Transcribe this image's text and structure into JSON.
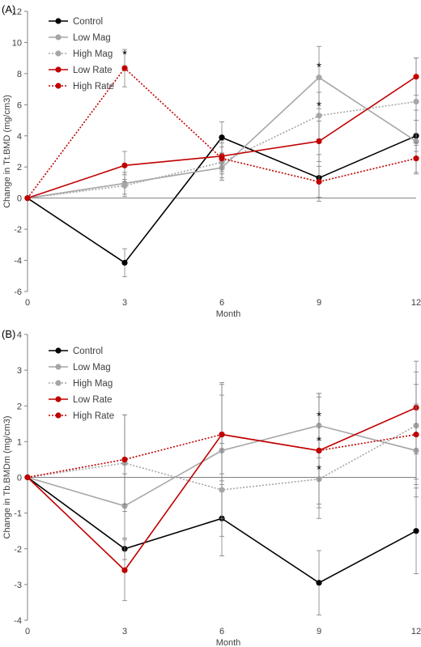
{
  "chart_data": [
    {
      "panel_label": "(A)",
      "type": "line",
      "x": [
        0,
        3,
        6,
        9,
        12
      ],
      "xlabel": "Month",
      "ylabel": "Change in Tt.BMD (mg/cm3)",
      "ylim": [
        -6,
        12
      ],
      "yticks": [
        -6,
        -4,
        -2,
        0,
        2,
        4,
        6,
        8,
        10,
        12
      ],
      "xticks": [
        0,
        3,
        6,
        9,
        12
      ],
      "legend_position": "top-left",
      "series": [
        {
          "name": "Control",
          "color": "#000000",
          "style": "solid",
          "values": [
            0,
            -4.15,
            3.9,
            1.3,
            4.0
          ],
          "errors": [
            0,
            0.9,
            1.0,
            1.5,
            1.0
          ]
        },
        {
          "name": "Low Mag",
          "color": "#a6a6a6",
          "style": "solid",
          "values": [
            0,
            0.95,
            1.95,
            7.75,
            3.65
          ],
          "errors": [
            0,
            0.7,
            0.8,
            2.0,
            2.0
          ]
        },
        {
          "name": "High Mag",
          "color": "#a6a6a6",
          "style": "dotted",
          "values": [
            0,
            0.8,
            2.3,
            5.3,
            6.2
          ],
          "errors": [
            0,
            0.7,
            1.0,
            1.5,
            2.8
          ]
        },
        {
          "name": "Low Rate",
          "color": "#c00000",
          "style": "solid",
          "values": [
            0,
            2.1,
            2.7,
            3.65,
            7.8
          ],
          "errors": [
            0,
            0.9,
            1.0,
            1.3,
            1.2
          ]
        },
        {
          "name": "High Rate",
          "color": "#c00000",
          "style": "dotted",
          "values": [
            0,
            8.35,
            2.55,
            1.05,
            2.55
          ],
          "errors": [
            0,
            1.2,
            1.0,
            1.0,
            1.0
          ]
        }
      ],
      "annotations": [
        {
          "text": "*",
          "x": 3,
          "y": 9.3
        },
        {
          "text": "*",
          "x": 9,
          "y": 8.5
        },
        {
          "text": "*",
          "x": 9,
          "y": 6.0
        }
      ]
    },
    {
      "panel_label": "(B)",
      "type": "line",
      "x": [
        0,
        3,
        6,
        9,
        12
      ],
      "xlabel": "Month",
      "ylabel": "Change in Tb.BMDm (mg/cm3)",
      "ylim": [
        -4,
        4
      ],
      "yticks": [
        -4,
        -3,
        -2,
        -1,
        0,
        1,
        2,
        3,
        4
      ],
      "xticks": [
        0,
        3,
        6,
        9,
        12
      ],
      "legend_position": "top-left",
      "series": [
        {
          "name": "Control",
          "color": "#000000",
          "style": "solid",
          "values": [
            0,
            -2.0,
            -1.15,
            -2.95,
            -1.5
          ],
          "errors": [
            0,
            0.3,
            1.05,
            0.9,
            1.2
          ]
        },
        {
          "name": "Low Mag",
          "color": "#a6a6a6",
          "style": "solid",
          "values": [
            0,
            -0.8,
            0.75,
            1.45,
            0.75
          ],
          "errors": [
            0,
            0.9,
            1.9,
            0.9,
            1.3
          ]
        },
        {
          "name": "High Mag",
          "color": "#a6a6a6",
          "style": "dotted",
          "values": [
            0,
            0.4,
            -0.35,
            -0.05,
            1.45
          ],
          "errors": [
            0,
            1.35,
            1.3,
            1.1,
            1.5
          ]
        },
        {
          "name": "Low Rate",
          "color": "#c00000",
          "style": "solid",
          "values": [
            0,
            -2.6,
            1.2,
            0.75,
            1.95
          ],
          "errors": [
            0,
            0.85,
            1.4,
            1.6,
            1.3
          ]
        },
        {
          "name": "High Rate",
          "color": "#c00000",
          "style": "dotted",
          "values": [
            0,
            0.5,
            1.2,
            0.75,
            1.2
          ],
          "errors": [
            0,
            1.25,
            1.1,
            1.5,
            1.4
          ]
        }
      ],
      "annotations": [
        {
          "text": "*",
          "x": 9,
          "y": 1.75
        },
        {
          "text": "*",
          "x": 9,
          "y": 1.05
        },
        {
          "text": "*",
          "x": 9,
          "y": 0.25
        }
      ]
    }
  ]
}
